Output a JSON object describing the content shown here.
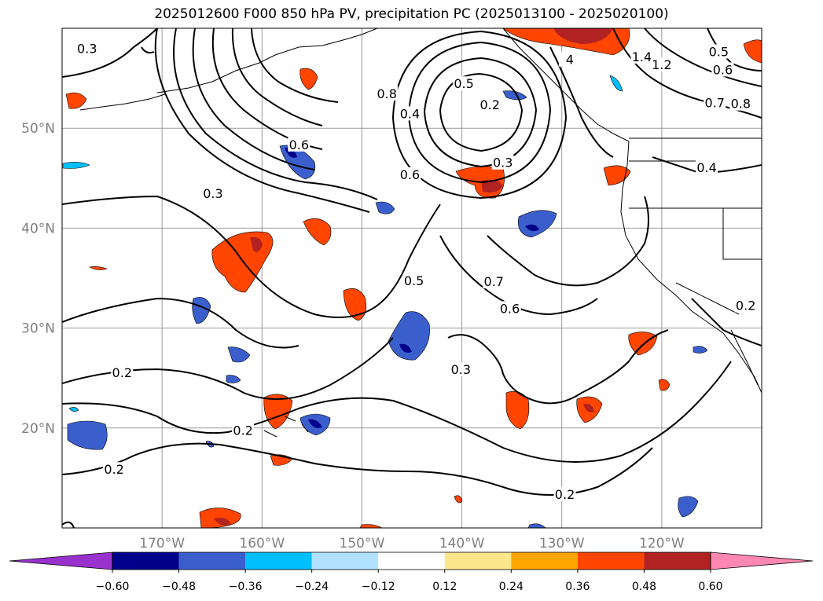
{
  "title": "2025012600 F000 850 hPa PV, precipitation PC (2025013100 - 2025020100)",
  "map": {
    "extent": {
      "lon_min": -180,
      "lon_max": -110,
      "lat_min": 10,
      "lat_max": 60
    },
    "lon_ticks": [
      {
        "lon": -170,
        "label": "170°W"
      },
      {
        "lon": -160,
        "label": "160°W"
      },
      {
        "lon": -150,
        "label": "150°W"
      },
      {
        "lon": -140,
        "label": "140°W"
      },
      {
        "lon": -130,
        "label": "130°W"
      },
      {
        "lon": -120,
        "label": "120°W"
      }
    ],
    "lat_ticks": [
      {
        "lat": 20,
        "label": "20°N"
      },
      {
        "lat": 30,
        "label": "30°N"
      },
      {
        "lat": 40,
        "label": "40°N"
      },
      {
        "lat": 50,
        "label": "50°N"
      }
    ],
    "contour_labels": [
      {
        "text": "0.3",
        "lon": -177.5,
        "lat": 57.9
      },
      {
        "text": "0.5",
        "lon": -139.8,
        "lat": 54.4
      },
      {
        "text": "0.8",
        "lon": -147.5,
        "lat": 53.4
      },
      {
        "text": "0.4",
        "lon": -145.2,
        "lat": 51.4
      },
      {
        "text": "0.2",
        "lon": -137.2,
        "lat": 52.3
      },
      {
        "text": "0.6",
        "lon": -156.3,
        "lat": 48.3
      },
      {
        "text": "0.3",
        "lon": -135.9,
        "lat": 46.5
      },
      {
        "text": "0.6",
        "lon": -145.2,
        "lat": 45.3
      },
      {
        "text": "0.3",
        "lon": -164.9,
        "lat": 43.4
      },
      {
        "text": "0.5",
        "lon": -144.8,
        "lat": 34.7
      },
      {
        "text": "0.7",
        "lon": -136.8,
        "lat": 34.6
      },
      {
        "text": "0.6",
        "lon": -135.2,
        "lat": 31.9
      },
      {
        "text": "0.3",
        "lon": -140.1,
        "lat": 25.8
      },
      {
        "text": "0.2",
        "lon": -174.0,
        "lat": 25.5
      },
      {
        "text": "0.2",
        "lon": -161.9,
        "lat": 19.7
      },
      {
        "text": "0.2",
        "lon": -174.8,
        "lat": 15.8
      },
      {
        "text": "0.2",
        "lon": -129.7,
        "lat": 13.3
      },
      {
        "text": "4",
        "lon": -129.2,
        "lat": 56.8
      },
      {
        "text": "1.4",
        "lon": -122.0,
        "lat": 57.1
      },
      {
        "text": "1.2",
        "lon": -120.0,
        "lat": 56.3
      },
      {
        "text": "0.5",
        "lon": -114.3,
        "lat": 57.6
      },
      {
        "text": "0.6",
        "lon": -113.9,
        "lat": 55.8
      },
      {
        "text": "0.7",
        "lon": -114.7,
        "lat": 52.5
      },
      {
        "text": "0.8",
        "lon": -112.1,
        "lat": 52.4
      },
      {
        "text": "0.4",
        "lon": -115.5,
        "lat": 46.0
      },
      {
        "text": "0.2",
        "lon": -111.6,
        "lat": 32.2
      }
    ]
  },
  "colorbar": {
    "levels": [
      "−0.60",
      "−0.48",
      "−0.36",
      "−0.24",
      "−0.12",
      "0.12",
      "0.24",
      "0.36",
      "0.48",
      "0.60"
    ],
    "colors": [
      "#9932cc",
      "#00008b",
      "#3a5fcd",
      "#00bfff",
      "#b0e2ff",
      "#ffffff",
      "#fce68c",
      "#ffa500",
      "#ff4500",
      "#b22222",
      "#ff88b2"
    ]
  }
}
